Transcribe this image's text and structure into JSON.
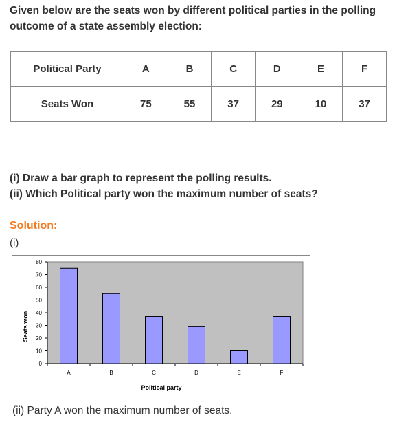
{
  "intro": "Given below are the seats won by different political parties in the polling outcome of a state assembly election:",
  "table": {
    "row_header": "Political Party",
    "value_header": "Seats Won",
    "parties": [
      "A",
      "B",
      "C",
      "D",
      "E",
      "F"
    ],
    "seats": [
      "75",
      "55",
      "37",
      "29",
      "10",
      "37"
    ]
  },
  "questions": {
    "q1": "(i) Draw a bar graph to represent the polling results.",
    "q2": "(ii) Which Political party won the maximum number of seats?"
  },
  "solution_label": "Solution:",
  "part1_label": "(i)",
  "chart_data": {
    "type": "bar",
    "categories": [
      "A",
      "B",
      "C",
      "D",
      "E",
      "F"
    ],
    "values": [
      75,
      55,
      37,
      29,
      10,
      37
    ],
    "xlabel": "Political party",
    "ylabel": "Seats won",
    "ylim": [
      0,
      80
    ],
    "yticks": [
      0,
      10,
      20,
      30,
      40,
      50,
      60,
      70,
      80
    ],
    "grid": false,
    "plot_background": "#c0c0c0",
    "bar_color": "#9999ff"
  },
  "answer": "(ii) Party A won the maximum number of seats."
}
